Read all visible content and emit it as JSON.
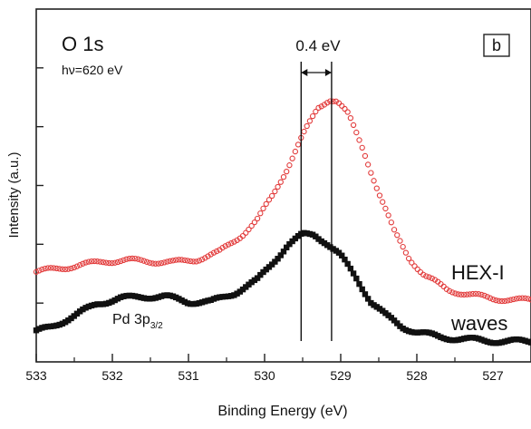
{
  "chart_data": {
    "type": "scatter",
    "xlabel": "Binding Energy  (eV)",
    "ylabel": "Intensity (a.u.)",
    "xlim": [
      533,
      526.5
    ],
    "x_reversed": true,
    "ylim": [
      0,
      1
    ],
    "y_ticks_labeled": false,
    "x_ticks": [
      533,
      532,
      531,
      530,
      529,
      528,
      527
    ],
    "x_tick_labels": [
      "533",
      "532",
      "531",
      "530",
      "529",
      "528",
      "527"
    ],
    "grid": false,
    "title": "O 1s",
    "subtitle": "hν=620 eV",
    "panel_label": "b",
    "annotations": {
      "shift_label": "0.4 eV",
      "shift_lines_x": [
        529.52,
        529.12
      ],
      "pd_main": "Pd 3p",
      "pd_sub": "3/2"
    },
    "series": [
      {
        "name": "HEX-I",
        "color": "#e23b3b",
        "marker": "open-circle",
        "points": [
          [
            533.0,
            0.255
          ],
          [
            532.7,
            0.265
          ],
          [
            532.4,
            0.275
          ],
          [
            532.1,
            0.285
          ],
          [
            531.8,
            0.288
          ],
          [
            531.5,
            0.285
          ],
          [
            531.2,
            0.282
          ],
          [
            530.9,
            0.29
          ],
          [
            530.6,
            0.31
          ],
          [
            530.3,
            0.36
          ],
          [
            530.1,
            0.4
          ],
          [
            529.9,
            0.47
          ],
          [
            529.7,
            0.55
          ],
          [
            529.5,
            0.64
          ],
          [
            529.3,
            0.72
          ],
          [
            529.15,
            0.745
          ],
          [
            529.05,
            0.74
          ],
          [
            528.9,
            0.7
          ],
          [
            528.7,
            0.6
          ],
          [
            528.5,
            0.48
          ],
          [
            528.3,
            0.37
          ],
          [
            528.1,
            0.295
          ],
          [
            527.9,
            0.245
          ],
          [
            527.6,
            0.205
          ],
          [
            527.3,
            0.19
          ],
          [
            527.0,
            0.18
          ],
          [
            526.7,
            0.175
          ],
          [
            526.5,
            0.175
          ]
        ]
      },
      {
        "name": "waves",
        "color": "#111111",
        "marker": "filled-square",
        "points": [
          [
            533.0,
            0.085
          ],
          [
            532.8,
            0.1
          ],
          [
            532.5,
            0.13
          ],
          [
            532.2,
            0.165
          ],
          [
            531.9,
            0.18
          ],
          [
            531.6,
            0.185
          ],
          [
            531.3,
            0.185
          ],
          [
            531.0,
            0.17
          ],
          [
            530.7,
            0.17
          ],
          [
            530.4,
            0.195
          ],
          [
            530.1,
            0.23
          ],
          [
            529.9,
            0.28
          ],
          [
            529.7,
            0.33
          ],
          [
            529.5,
            0.36
          ],
          [
            529.35,
            0.362
          ],
          [
            529.2,
            0.34
          ],
          [
            529.0,
            0.3
          ],
          [
            528.8,
            0.24
          ],
          [
            528.6,
            0.17
          ],
          [
            528.4,
            0.13
          ],
          [
            528.2,
            0.1
          ],
          [
            528.0,
            0.085
          ],
          [
            527.7,
            0.07
          ],
          [
            527.4,
            0.065
          ],
          [
            527.1,
            0.06
          ],
          [
            526.8,
            0.058
          ],
          [
            526.5,
            0.058
          ]
        ]
      }
    ]
  }
}
